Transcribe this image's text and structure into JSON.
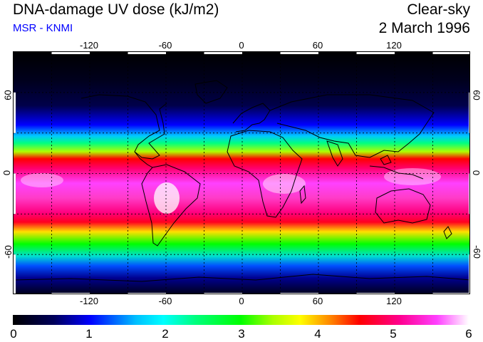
{
  "header": {
    "title": "DNA-damage UV dose (kJ/m2)",
    "source": "MSR - KNMI",
    "condition": "Clear-sky",
    "date": "2 March 1996"
  },
  "map": {
    "lon_ticks": [
      "-120",
      "-60",
      "0",
      "60",
      "120"
    ],
    "lat_ticks_left": [
      "60",
      "0",
      "-60"
    ],
    "lat_ticks_right": [
      "60",
      "0",
      "-60"
    ],
    "lon_range": [
      -180,
      180
    ],
    "lat_range": [
      -90,
      90
    ],
    "gridline_lons": [
      -150,
      -120,
      -90,
      -60,
      -30,
      0,
      30,
      60,
      90,
      120,
      150
    ],
    "gridline_lats": [
      -60,
      -30,
      0,
      30,
      60
    ]
  },
  "colorbar": {
    "ticks": [
      "0",
      "1",
      "2",
      "3",
      "4",
      "5",
      "6"
    ],
    "range": [
      0,
      6
    ]
  },
  "colors": {
    "subtitle": "#0000ff"
  }
}
